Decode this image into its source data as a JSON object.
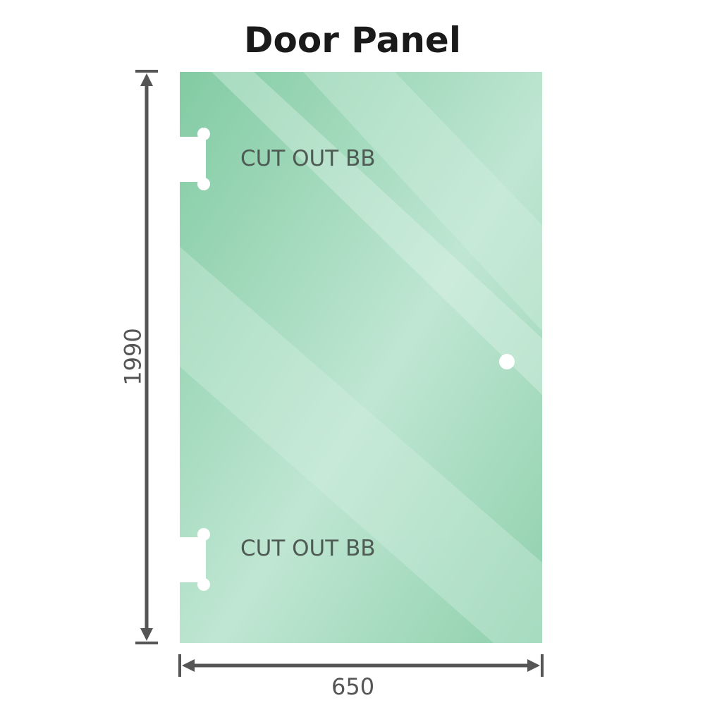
{
  "title": "Door Panel",
  "colors": {
    "glass": "#86cda6",
    "glass_light": "#bde6d0",
    "dimension_line": "#555555"
  },
  "labels": {
    "cutout_top": "CUT OUT BB",
    "cutout_bottom": "CUT OUT BB"
  },
  "dimensions": {
    "height": "1990",
    "width": "650"
  }
}
